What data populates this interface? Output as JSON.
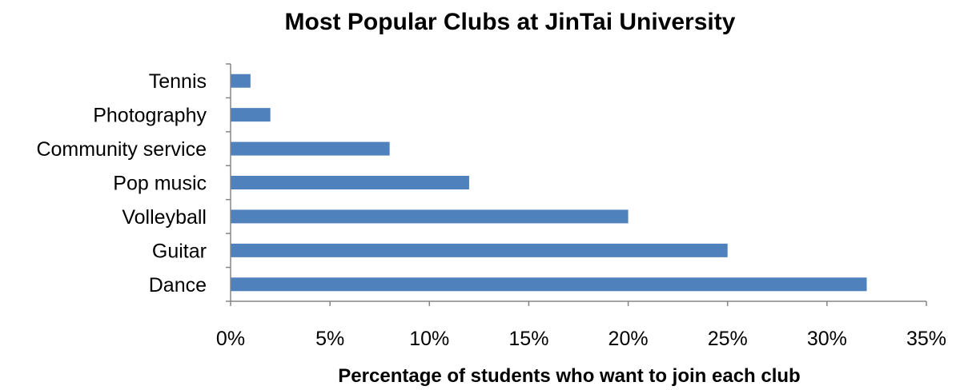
{
  "chart_data": {
    "type": "bar",
    "orientation": "horizontal",
    "title": "Most Popular Clubs at JinTai University",
    "xlabel": "Percentage of students who want to join each club",
    "ylabel": "",
    "categories": [
      "Dance",
      "Guitar",
      "Volleyball",
      "Pop music",
      "Community service",
      "Photography",
      "Tennis"
    ],
    "values": [
      32,
      25,
      20,
      12,
      8,
      2,
      1
    ],
    "xlim": [
      0,
      35
    ],
    "x_ticks": [
      0,
      5,
      10,
      15,
      20,
      25,
      30,
      35
    ],
    "x_tick_labels": [
      "0%",
      "5%",
      "10%",
      "15%",
      "20%",
      "25%",
      "30%",
      "35%"
    ],
    "grid": false,
    "legend": "none",
    "bar_color": "#4F81BD",
    "axis_color": "#868686"
  }
}
